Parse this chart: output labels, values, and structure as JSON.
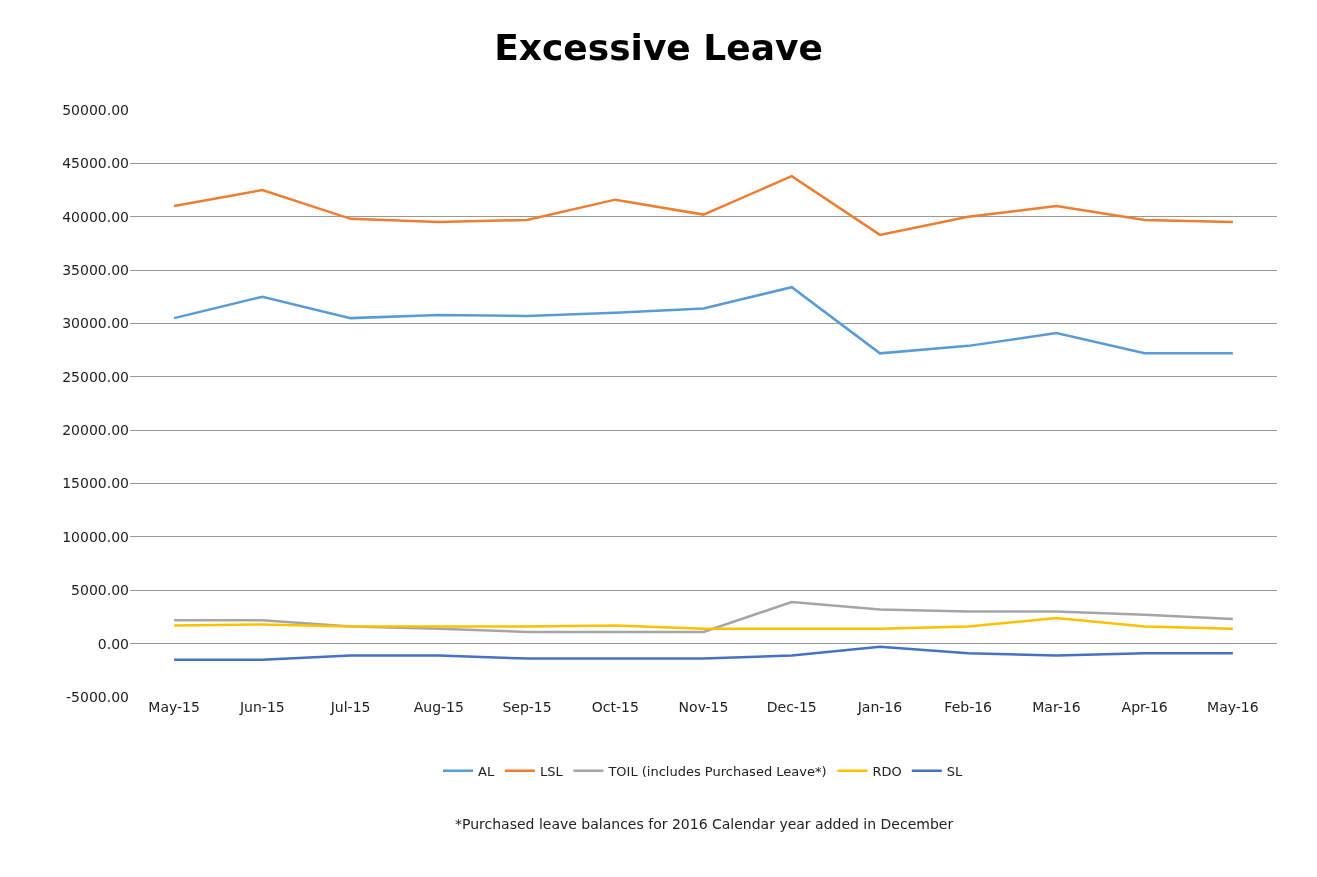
{
  "chart_data": {
    "type": "line",
    "title": "Excessive Leave",
    "categories": [
      "May-15",
      "Jun-15",
      "Jul-15",
      "Aug-15",
      "Sep-15",
      "Oct-15",
      "Nov-15",
      "Dec-15",
      "Jan-16",
      "Feb-16",
      "Mar-16",
      "Apr-16",
      "May-16"
    ],
    "series": [
      {
        "name": "AL",
        "color": "#5b9bd5",
        "values": [
          30500,
          32500,
          30500,
          30800,
          30700,
          31000,
          31400,
          33400,
          27200,
          27900,
          29100,
          27200,
          27200
        ]
      },
      {
        "name": "LSL",
        "color": "#ed7d31",
        "values": [
          41000,
          42500,
          39800,
          39500,
          39700,
          41600,
          40200,
          43800,
          38300,
          40000,
          41000,
          39700,
          39500
        ]
      },
      {
        "name": "TOIL (includes Purchased Leave*)",
        "color": "#a5a5a5",
        "values": [
          2200,
          2200,
          1600,
          1400,
          1100,
          1100,
          1100,
          3900,
          3200,
          3000,
          3000,
          2700,
          2300
        ]
      },
      {
        "name": "RDO",
        "color": "#ffc000",
        "values": [
          1700,
          1800,
          1600,
          1600,
          1600,
          1700,
          1400,
          1400,
          1400,
          1600,
          2400,
          1600,
          1400
        ]
      },
      {
        "name": "SL",
        "color": "#4472c4",
        "values": [
          -1500,
          -1500,
          -1100,
          -1100,
          -1400,
          -1400,
          -1400,
          -1100,
          -300,
          -900,
          -1100,
          -900,
          -900
        ]
      }
    ],
    "ylim": [
      -5000,
      50000
    ],
    "yticks": [
      {
        "value": -5000,
        "label": "-5000.00"
      },
      {
        "value": 0,
        "label": "0.00"
      },
      {
        "value": 5000,
        "label": "5000.00"
      },
      {
        "value": 10000,
        "label": "10000.00"
      },
      {
        "value": 15000,
        "label": "15000.00"
      },
      {
        "value": 20000,
        "label": "20000.00"
      },
      {
        "value": 25000,
        "label": "25000.00"
      },
      {
        "value": 30000,
        "label": "30000.00"
      },
      {
        "value": 35000,
        "label": "35000.00"
      },
      {
        "value": 40000,
        "label": "40000.00"
      },
      {
        "value": 45000,
        "label": "45000.00"
      },
      {
        "value": 50000,
        "label": "50000.00"
      }
    ],
    "grid": "y",
    "legend": "bottom",
    "marker": "none",
    "line_style": "solid",
    "annotations": [
      "*Purchased leave balances for 2016 Calendar year added in December"
    ]
  }
}
